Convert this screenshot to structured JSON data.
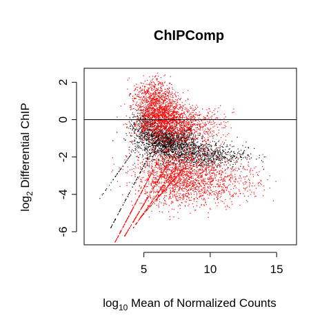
{
  "chart_data": {
    "type": "scatter",
    "title": "ChIPComp",
    "xlabel": {
      "prefix": "log",
      "sub": "10",
      "rest": " Mean of Normalized Counts"
    },
    "ylabel": {
      "prefix": "log",
      "sub": "2",
      "rest": " Differential ChIP"
    },
    "xlim": [
      0.5,
      16.5
    ],
    "ylim": [
      -6.7,
      2.75
    ],
    "xticks": [
      5,
      10,
      15
    ],
    "yticks": [
      -6,
      -4,
      -2,
      0,
      2
    ],
    "hline": 0,
    "grid": false,
    "legend": "none",
    "series": [
      {
        "color": "#000000",
        "clusters": [
          {
            "center": [
              6.8,
              -1.2
            ],
            "spread": [
              1.1,
              0.45
            ],
            "count": 1400
          },
          {
            "center": [
              9.5,
              -1.9
            ],
            "spread": [
              1.6,
              0.35
            ],
            "count": 700
          },
          {
            "center": [
              5.0,
              -0.4
            ],
            "spread": [
              0.5,
              0.5
            ],
            "count": 300
          }
        ],
        "lines": [
          {
            "from": [
              2.5,
              -5.8
            ],
            "to": [
              5.5,
              -1.8
            ],
            "count": 80
          },
          {
            "from": [
              1.5,
              -4.4
            ],
            "to": [
              4.5,
              -1.4
            ],
            "count": 40
          }
        ]
      },
      {
        "color": "#ff0000",
        "clusters": [
          {
            "center": [
              6.2,
              0.3
            ],
            "spread": [
              0.9,
              0.6
            ],
            "count": 1300
          },
          {
            "center": [
              7.8,
              -0.3
            ],
            "spread": [
              1.6,
              0.5
            ],
            "count": 900
          },
          {
            "center": [
              7.5,
              -3.0
            ],
            "spread": [
              1.6,
              0.8
            ],
            "count": 1500
          },
          {
            "center": [
              10.5,
              -3.3
            ],
            "spread": [
              1.8,
              0.6
            ],
            "count": 500
          },
          {
            "center": [
              5.6,
              1.4
            ],
            "spread": [
              0.7,
              0.45
            ],
            "count": 300
          }
        ],
        "lines": [
          {
            "from": [
              2.8,
              -6.6
            ],
            "to": [
              6.0,
              -2.3
            ],
            "count": 180
          },
          {
            "from": [
              3.5,
              -6.3
            ],
            "to": [
              6.8,
              -2.4
            ],
            "count": 180
          },
          {
            "from": [
              4.2,
              -5.8
            ],
            "to": [
              7.5,
              -2.5
            ],
            "count": 160
          },
          {
            "from": [
              4.8,
              -5.2
            ],
            "to": [
              8.0,
              -2.6
            ],
            "count": 140
          }
        ]
      }
    ]
  }
}
